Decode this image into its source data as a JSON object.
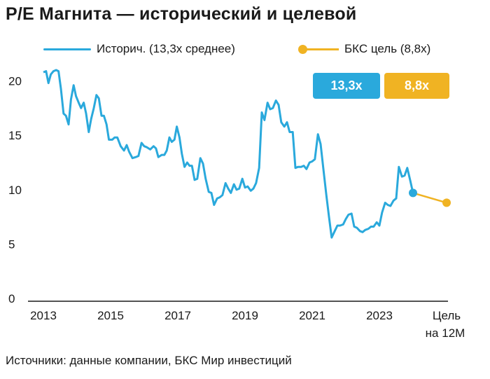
{
  "title": "P/E Магнита — исторический и целевой",
  "legend": {
    "historic": "Историч. (13,3x среднее)",
    "target": "БКС цель (8,8x)"
  },
  "badges": {
    "historic": "13,3x",
    "target": "8,8x"
  },
  "source": "Источники: данные компании, БКС Мир инвестиций",
  "colors": {
    "historic": "#2aa9dc",
    "target": "#f0b323",
    "axis": "#1a1a1a"
  },
  "chart_data": {
    "type": "line",
    "title": "P/E Магнита — исторический и целевой",
    "xlabel": "",
    "ylabel": "",
    "xlim": [
      2013,
      2025.0
    ],
    "ylim": [
      0,
      21
    ],
    "yticks": [
      0,
      5,
      10,
      15,
      20
    ],
    "xtick_labels": [
      {
        "x": 2013,
        "label": "2013"
      },
      {
        "x": 2015,
        "label": "2015"
      },
      {
        "x": 2017,
        "label": "2017"
      },
      {
        "x": 2019,
        "label": "2019"
      },
      {
        "x": 2021,
        "label": "2021"
      },
      {
        "x": 2023,
        "label": "2023"
      }
    ],
    "target_tick": {
      "x": 2025.0,
      "line1": "Цель",
      "line2": "на 12M"
    },
    "series": [
      {
        "name": "Историч. (13,3x среднее)",
        "color": "#2aa9dc",
        "points": [
          [
            2013.0,
            20.8
          ],
          [
            2013.08,
            20.9
          ],
          [
            2013.15,
            19.8
          ],
          [
            2013.22,
            20.6
          ],
          [
            2013.3,
            20.9
          ],
          [
            2013.38,
            21.0
          ],
          [
            2013.45,
            20.9
          ],
          [
            2013.52,
            19.3
          ],
          [
            2013.6,
            17.0
          ],
          [
            2013.67,
            16.8
          ],
          [
            2013.75,
            16.0
          ],
          [
            2013.82,
            18.3
          ],
          [
            2013.9,
            19.6
          ],
          [
            2013.97,
            18.6
          ],
          [
            2014.05,
            18.0
          ],
          [
            2014.12,
            17.5
          ],
          [
            2014.2,
            18.0
          ],
          [
            2014.27,
            17.0
          ],
          [
            2014.35,
            15.3
          ],
          [
            2014.42,
            16.5
          ],
          [
            2014.5,
            17.5
          ],
          [
            2014.58,
            18.7
          ],
          [
            2014.65,
            18.4
          ],
          [
            2014.73,
            16.8
          ],
          [
            2014.8,
            16.8
          ],
          [
            2014.88,
            16.0
          ],
          [
            2014.95,
            14.6
          ],
          [
            2015.05,
            14.6
          ],
          [
            2015.12,
            14.8
          ],
          [
            2015.2,
            14.8
          ],
          [
            2015.3,
            14.0
          ],
          [
            2015.4,
            13.6
          ],
          [
            2015.48,
            14.1
          ],
          [
            2015.55,
            13.5
          ],
          [
            2015.65,
            12.9
          ],
          [
            2015.75,
            13.0
          ],
          [
            2015.83,
            13.1
          ],
          [
            2015.92,
            14.3
          ],
          [
            2016.0,
            14.0
          ],
          [
            2016.08,
            13.9
          ],
          [
            2016.18,
            13.7
          ],
          [
            2016.28,
            14.0
          ],
          [
            2016.35,
            13.8
          ],
          [
            2016.42,
            13.0
          ],
          [
            2016.52,
            13.2
          ],
          [
            2016.6,
            13.2
          ],
          [
            2016.67,
            13.6
          ],
          [
            2016.75,
            14.8
          ],
          [
            2016.82,
            14.4
          ],
          [
            2016.9,
            14.6
          ],
          [
            2016.97,
            15.8
          ],
          [
            2017.05,
            14.8
          ],
          [
            2017.12,
            13.3
          ],
          [
            2017.2,
            12.1
          ],
          [
            2017.28,
            12.5
          ],
          [
            2017.35,
            12.2
          ],
          [
            2017.42,
            12.2
          ],
          [
            2017.5,
            10.9
          ],
          [
            2017.58,
            11.0
          ],
          [
            2017.67,
            12.9
          ],
          [
            2017.75,
            12.4
          ],
          [
            2017.83,
            11.0
          ],
          [
            2017.92,
            9.8
          ],
          [
            2018.0,
            9.7
          ],
          [
            2018.08,
            8.6
          ],
          [
            2018.17,
            9.2
          ],
          [
            2018.25,
            9.3
          ],
          [
            2018.33,
            9.5
          ],
          [
            2018.42,
            10.6
          ],
          [
            2018.5,
            10.1
          ],
          [
            2018.58,
            9.7
          ],
          [
            2018.67,
            10.5
          ],
          [
            2018.75,
            10.0
          ],
          [
            2018.83,
            10.1
          ],
          [
            2018.92,
            11.0
          ],
          [
            2019.0,
            10.2
          ],
          [
            2019.08,
            10.3
          ],
          [
            2019.17,
            9.9
          ],
          [
            2019.25,
            10.1
          ],
          [
            2019.33,
            10.6
          ],
          [
            2019.42,
            12.0
          ],
          [
            2019.5,
            17.1
          ],
          [
            2019.58,
            16.4
          ],
          [
            2019.67,
            18.0
          ],
          [
            2019.75,
            17.4
          ],
          [
            2019.83,
            17.5
          ],
          [
            2019.92,
            18.2
          ],
          [
            2020.0,
            17.8
          ],
          [
            2020.08,
            16.2
          ],
          [
            2020.17,
            15.8
          ],
          [
            2020.25,
            16.2
          ],
          [
            2020.33,
            15.3
          ],
          [
            2020.42,
            15.3
          ],
          [
            2020.5,
            12.0
          ],
          [
            2020.58,
            12.1
          ],
          [
            2020.67,
            12.1
          ],
          [
            2020.75,
            12.2
          ],
          [
            2020.83,
            11.9
          ],
          [
            2020.92,
            12.5
          ],
          [
            2021.0,
            12.6
          ],
          [
            2021.08,
            12.8
          ],
          [
            2021.17,
            15.1
          ],
          [
            2021.25,
            14.2
          ],
          [
            2021.33,
            12.0
          ],
          [
            2021.42,
            9.5
          ],
          [
            2021.5,
            7.5
          ],
          [
            2021.58,
            5.6
          ],
          [
            2021.67,
            6.2
          ],
          [
            2021.75,
            6.7
          ],
          [
            2021.83,
            6.7
          ],
          [
            2021.92,
            6.8
          ],
          [
            2022.0,
            7.3
          ],
          [
            2022.08,
            7.7
          ],
          [
            2022.17,
            7.8
          ],
          [
            2022.25,
            6.6
          ],
          [
            2022.33,
            6.5
          ],
          [
            2022.42,
            6.2
          ],
          [
            2022.5,
            6.1
          ],
          [
            2022.58,
            6.3
          ],
          [
            2022.67,
            6.4
          ],
          [
            2022.75,
            6.6
          ],
          [
            2022.83,
            6.6
          ],
          [
            2022.92,
            7.0
          ],
          [
            2023.0,
            6.7
          ],
          [
            2023.08,
            7.9
          ],
          [
            2023.17,
            8.8
          ],
          [
            2023.25,
            8.6
          ],
          [
            2023.33,
            8.5
          ],
          [
            2023.42,
            9.0
          ],
          [
            2023.5,
            9.2
          ],
          [
            2023.58,
            12.1
          ],
          [
            2023.67,
            11.2
          ],
          [
            2023.75,
            11.3
          ],
          [
            2023.83,
            12.0
          ],
          [
            2023.92,
            10.8
          ],
          [
            2024.0,
            9.7
          ]
        ]
      },
      {
        "name": "БКС цель (8,8x)",
        "color": "#f0b323",
        "points": [
          [
            2024.0,
            9.7
          ],
          [
            2025.0,
            8.8
          ]
        ]
      }
    ],
    "end_marker": {
      "x": 2024.0,
      "y": 9.7
    },
    "target_marker": {
      "x": 2025.0,
      "y": 8.8
    }
  }
}
